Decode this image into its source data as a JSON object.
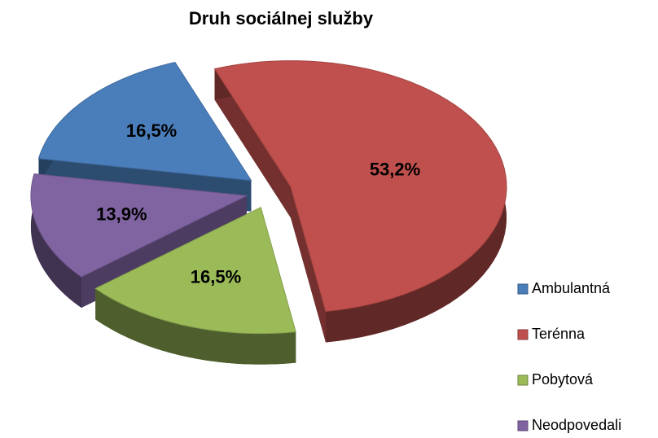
{
  "chart_data": {
    "type": "pie",
    "title": "Druh sociálnej služby",
    "categories": [
      "Ambulantná",
      "Terénna",
      "Pobytová",
      "Neodpovedali"
    ],
    "values": [
      16.5,
      53.2,
      16.5,
      13.9
    ],
    "value_labels": [
      "16,5%",
      "53,2%",
      "16,5%",
      "13,9%"
    ],
    "colors": [
      "#4a7ebb",
      "#c0504d",
      "#9bbb59",
      "#8064a2"
    ],
    "legend": "right"
  }
}
